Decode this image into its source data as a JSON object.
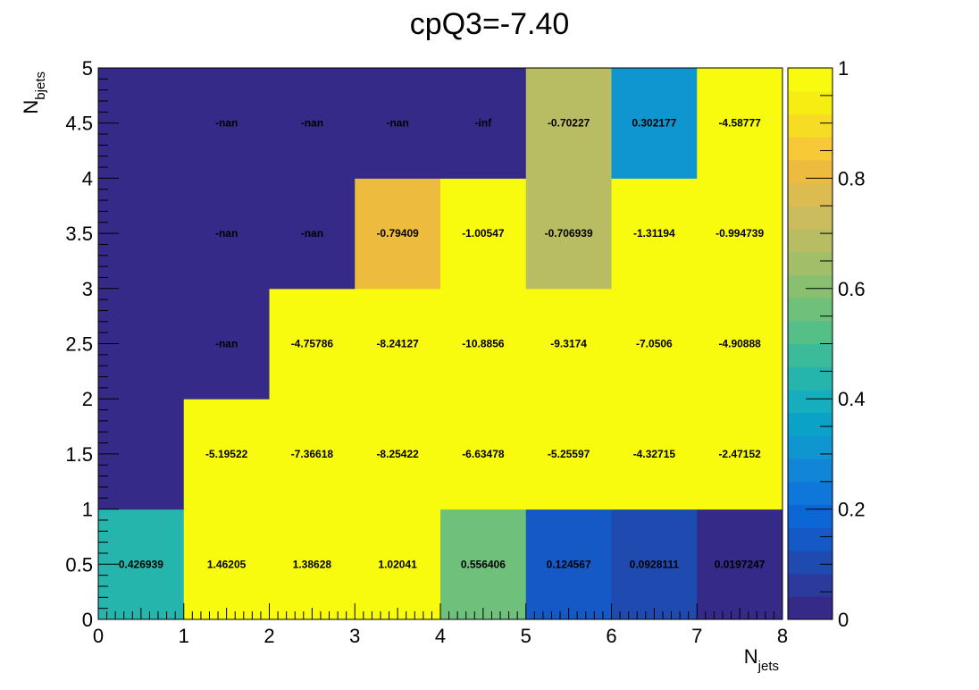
{
  "chart_data": {
    "type": "heatmap",
    "title": "cpQ3=-7.40",
    "xlabel": {
      "main": "N",
      "sub": "jets"
    },
    "ylabel": {
      "main": "N",
      "sub": "bjets"
    },
    "xlim": [
      0,
      8
    ],
    "ylim": [
      0,
      5
    ],
    "zlim": [
      0,
      1
    ],
    "x_ticks": [
      "0",
      "1",
      "2",
      "3",
      "4",
      "5",
      "6",
      "7",
      "8"
    ],
    "y_ticks": [
      "0",
      "0.5",
      "1",
      "1.5",
      "2",
      "2.5",
      "3",
      "3.5",
      "4",
      "4.5",
      "5"
    ],
    "z_ticks": [
      "0",
      "0.2",
      "0.4",
      "0.6",
      "0.8",
      "1"
    ],
    "palette": [
      "#352a87",
      "#2b3a9c",
      "#1f4bb0",
      "#1459c6",
      "#0d66d6",
      "#0f76da",
      "#1186d7",
      "#0f95d0",
      "#0aa3c7",
      "#16aebd",
      "#26b5ad",
      "#3bbb9a",
      "#55bf88",
      "#6fc07b",
      "#89c06f",
      "#a2be69",
      "#b8bd63",
      "#cbbc5d",
      "#dcbb51",
      "#edbc3f",
      "#f8c936",
      "#f7dc24",
      "#f6ed13",
      "#f9fb0e"
    ],
    "rows": [
      {
        "y": 0.5,
        "labels": [
          "0.426939",
          "1.46205",
          "1.38628",
          "1.02041",
          "0.556406",
          "0.124567",
          "0.0928111",
          "0.0197247"
        ],
        "z": [
          0.427,
          1.0,
          1.0,
          1.0,
          0.556,
          0.125,
          0.093,
          0.02
        ]
      },
      {
        "y": 1.5,
        "labels": [
          "",
          "-5.19522",
          "-7.36618",
          "-8.25422",
          "-6.63478",
          "-5.25597",
          "-4.32715",
          "-2.47152"
        ],
        "z": [
          0.0,
          1.0,
          1.0,
          1.0,
          1.0,
          1.0,
          1.0,
          1.0
        ]
      },
      {
        "y": 2.5,
        "labels": [
          "",
          "-nan",
          "-4.75786",
          "-8.24127",
          "-10.8856",
          "-9.3174",
          "-7.0506",
          "-4.90888"
        ],
        "z": [
          0.0,
          0.0,
          1.0,
          1.0,
          1.0,
          1.0,
          1.0,
          1.0
        ]
      },
      {
        "y": 3.5,
        "labels": [
          "",
          "-nan",
          "-nan",
          "-0.79409",
          "-1.00547",
          "-0.706939",
          "-1.31194",
          "-0.994739"
        ],
        "z": [
          0.0,
          0.0,
          0.0,
          0.794,
          1.0,
          0.707,
          1.0,
          0.995
        ]
      },
      {
        "y": 4.5,
        "labels": [
          "",
          "-nan",
          "-nan",
          "-nan",
          "-inf",
          "-0.70227",
          "0.302177",
          "-4.58777"
        ],
        "z": [
          0.0,
          0.0,
          0.0,
          0.0,
          0.0,
          0.702,
          0.302,
          1.0
        ]
      }
    ]
  }
}
